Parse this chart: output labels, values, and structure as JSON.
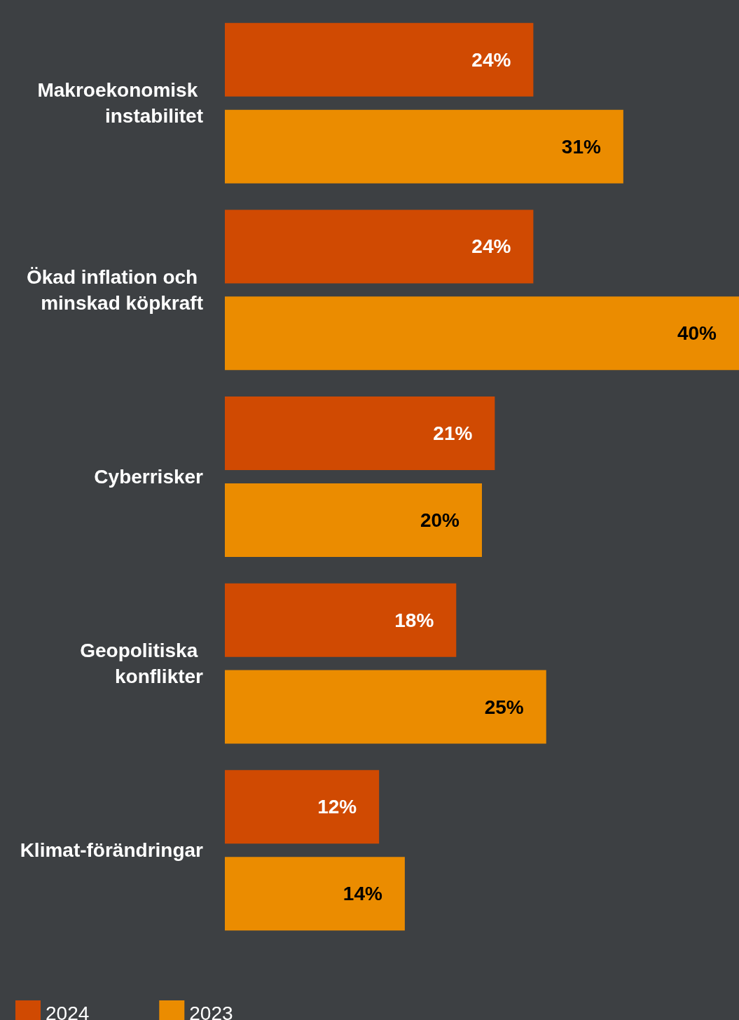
{
  "chart_data": {
    "type": "bar",
    "orientation": "horizontal",
    "categories": [
      "Makroekonomisk instabilitet",
      "Ökad inflation och minskad köpkraft",
      "Cyberrisker",
      "Geopolitiska konflikter",
      "Klimat-förändringar"
    ],
    "series": [
      {
        "name": "2024",
        "color": "#d04a02",
        "values": [
          24,
          24,
          21,
          18,
          12
        ],
        "value_labels": [
          "24%",
          "24%",
          "21%",
          "18%",
          "12%"
        ]
      },
      {
        "name": "2023",
        "color": "#eb8c00",
        "values": [
          31,
          40,
          20,
          25,
          14
        ],
        "value_labels": [
          "31%",
          "40%",
          "20%",
          "25%",
          "14%"
        ]
      }
    ],
    "legend": "bottom left"
  }
}
